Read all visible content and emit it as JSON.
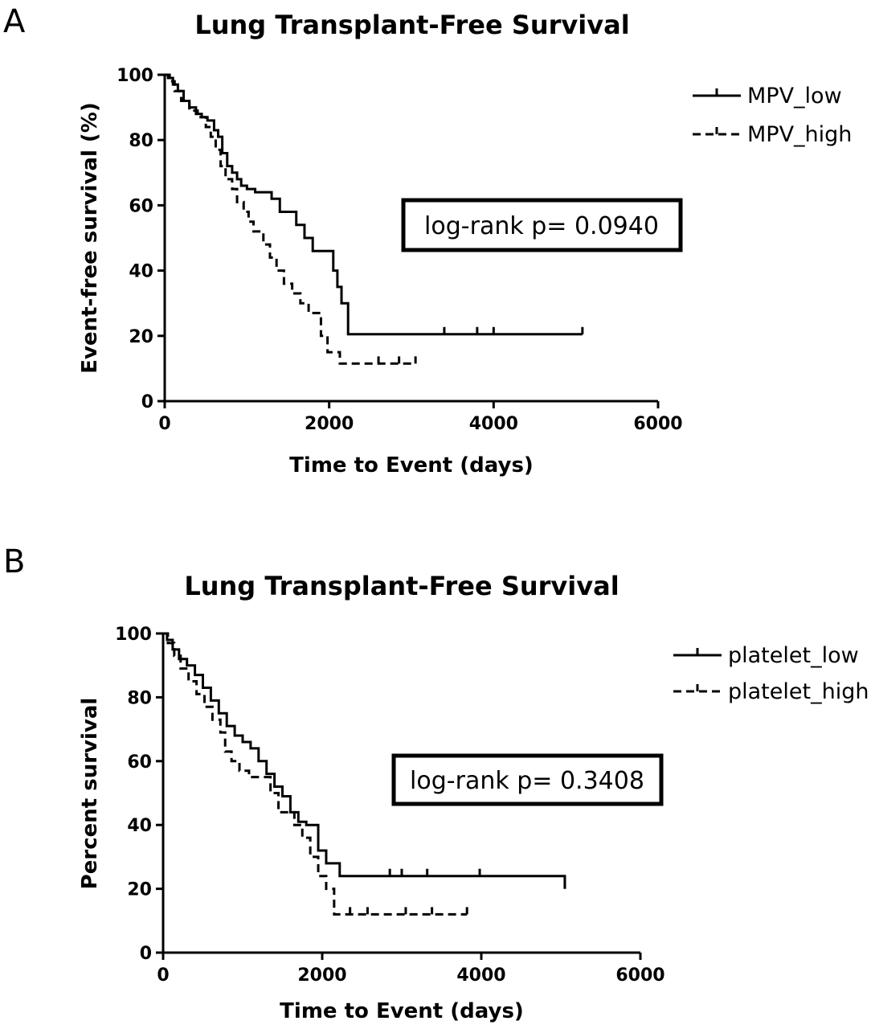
{
  "chart_data": [
    {
      "panel": "A",
      "type": "line",
      "step": true,
      "title": "Lung Transplant-Free Survival",
      "xlabel": "Time to Event (days)",
      "ylabel": "Event-free survival (%)",
      "xlim": [
        0,
        6000
      ],
      "ylim": [
        0,
        100
      ],
      "xticks": [
        0,
        2000,
        4000,
        6000
      ],
      "yticks": [
        0,
        20,
        40,
        60,
        80,
        100
      ],
      "legend_position": "top-right",
      "annotation": "log-rank p= 0.0940",
      "series": [
        {
          "name": "MPV_low",
          "style": "solid",
          "x": [
            0,
            40,
            100,
            160,
            230,
            300,
            380,
            450,
            520,
            600,
            650,
            700,
            760,
            820,
            880,
            930,
            1000,
            1100,
            1200,
            1300,
            1400,
            1550,
            1600,
            1700,
            1800,
            1950,
            2050,
            2100,
            2150,
            2230,
            5080
          ],
          "y": [
            100,
            99,
            97,
            95,
            92,
            90,
            88,
            87,
            86,
            83,
            81,
            76,
            72,
            70,
            68,
            66,
            65,
            64,
            64,
            62,
            58,
            58,
            54,
            50,
            46,
            46,
            40,
            35,
            30,
            20.5,
            20.5
          ],
          "censored_x": [
            3400,
            3800,
            4000,
            5080
          ]
        },
        {
          "name": "MPV_high",
          "style": "dashed",
          "x": [
            0,
            60,
            120,
            200,
            300,
            400,
            500,
            560,
            620,
            680,
            740,
            820,
            880,
            960,
            1020,
            1080,
            1150,
            1200,
            1280,
            1360,
            1450,
            1550,
            1650,
            1750,
            1900,
            1980,
            2050,
            2130,
            3050
          ],
          "y": [
            100,
            98,
            95,
            92,
            89,
            87,
            84,
            81,
            77,
            72,
            68,
            65,
            61,
            58,
            55,
            52,
            52,
            48,
            44,
            40,
            36,
            33,
            30,
            27,
            20,
            15,
            15,
            11.5,
            11.5
          ],
          "censored_x": [
            2600,
            2850,
            3050
          ]
        }
      ]
    },
    {
      "panel": "B",
      "type": "line",
      "step": true,
      "title": "Lung Transplant-Free Survival",
      "xlabel": "Time to Event (days)",
      "ylabel": "Percent survival",
      "xlim": [
        0,
        6000
      ],
      "ylim": [
        0,
        100
      ],
      "xticks": [
        0,
        2000,
        4000,
        6000
      ],
      "yticks": [
        0,
        20,
        40,
        60,
        80,
        100
      ],
      "legend_position": "top-right",
      "annotation": "log-rank p= 0.3408",
      "series": [
        {
          "name": "platelet_low",
          "style": "solid",
          "x": [
            0,
            50,
            120,
            200,
            300,
            400,
            500,
            600,
            700,
            800,
            900,
            1000,
            1100,
            1200,
            1300,
            1400,
            1500,
            1600,
            1700,
            1800,
            1900,
            1950,
            2050,
            2220,
            5050
          ],
          "y": [
            100,
            98,
            95,
            92,
            90,
            87,
            83,
            79,
            75,
            71,
            68,
            66,
            64,
            60,
            56,
            52,
            49,
            44,
            41,
            40,
            40,
            32,
            28,
            24,
            20
          ],
          "censored_x": [
            2850,
            3000,
            3320,
            3980,
            5050
          ]
        },
        {
          "name": "platelet_high",
          "style": "dashed",
          "x": [
            0,
            60,
            140,
            220,
            320,
            420,
            520,
            620,
            720,
            780,
            860,
            960,
            1080,
            1200,
            1350,
            1450,
            1550,
            1650,
            1750,
            1850,
            1950,
            2050,
            2150,
            3820
          ],
          "y": [
            100,
            97,
            93,
            89,
            85,
            81,
            77,
            73,
            69,
            63,
            60,
            57,
            55,
            55,
            50,
            44,
            44,
            40,
            36,
            30,
            24,
            20,
            12,
            12
          ],
          "censored_x": [
            2350,
            2570,
            3050,
            3380,
            3820
          ]
        }
      ]
    }
  ],
  "panels": {
    "A": {
      "letter": "A",
      "title": "Lung Transplant-Free Survival",
      "xlabel": "Time to Event (days)",
      "ylabel": "Event-free survival (%)",
      "legend": [
        "MPV_low",
        "MPV_high"
      ],
      "pvalue": "log-rank p= 0.0940"
    },
    "B": {
      "letter": "B",
      "title": "Lung Transplant-Free Survival",
      "xlabel": "Time to Event (days)",
      "ylabel": "Percent survival",
      "legend": [
        "platelet_low",
        "platelet_high"
      ],
      "pvalue": "log-rank p= 0.3408"
    }
  }
}
